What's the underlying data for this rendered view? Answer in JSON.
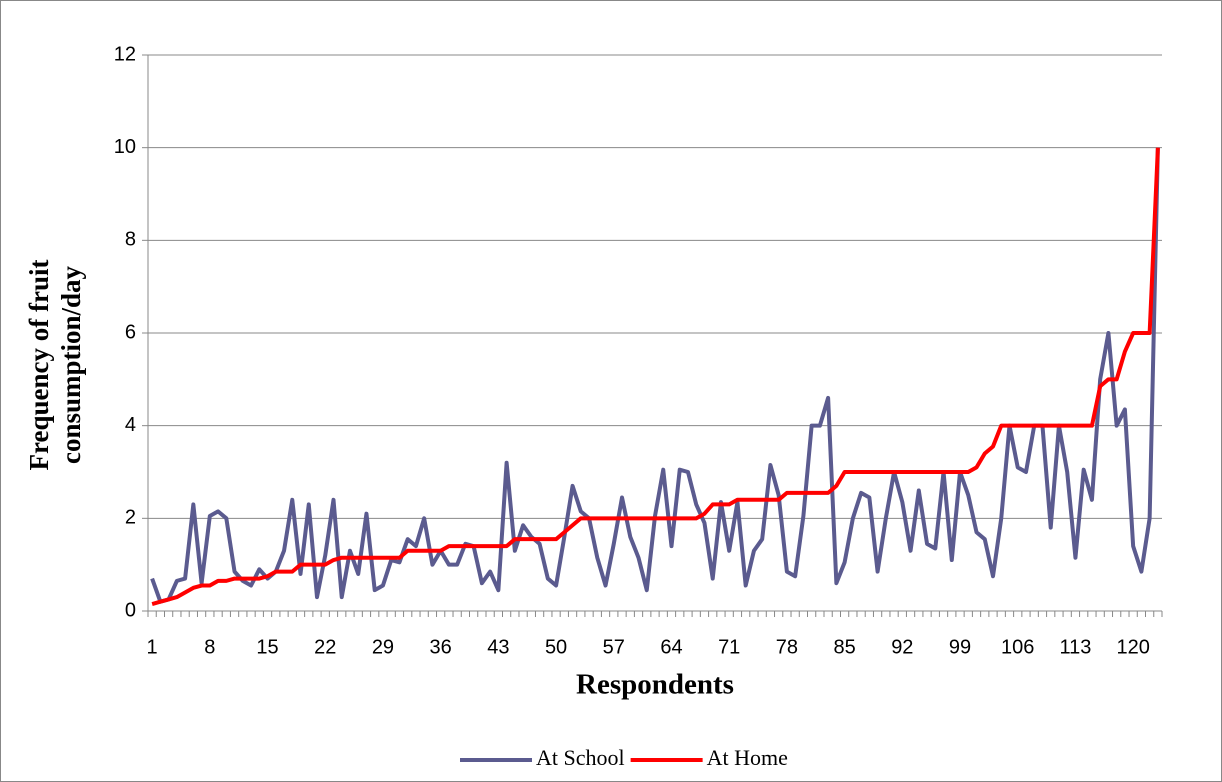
{
  "chart_data": {
    "type": "line",
    "y_label_lines": [
      "Frequency of fruit",
      "consumption/day"
    ],
    "x_label": "Respondents",
    "categories": [
      "1",
      null,
      null,
      null,
      null,
      null,
      null,
      "8",
      null,
      null,
      null,
      null,
      null,
      null,
      "15",
      null,
      null,
      null,
      null,
      null,
      null,
      "22",
      null,
      null,
      null,
      null,
      null,
      null,
      "29",
      null,
      null,
      null,
      null,
      null,
      null,
      "36",
      null,
      null,
      null,
      null,
      null,
      null,
      "43",
      null,
      null,
      null,
      null,
      null,
      null,
      "50",
      null,
      null,
      null,
      null,
      null,
      null,
      "57",
      null,
      null,
      null,
      null,
      null,
      null,
      "64",
      null,
      null,
      null,
      null,
      null,
      null,
      "71",
      null,
      null,
      null,
      null,
      null,
      null,
      "78",
      null,
      null,
      null,
      null,
      null,
      null,
      "85",
      null,
      null,
      null,
      null,
      null,
      null,
      "92",
      null,
      null,
      null,
      null,
      null,
      null,
      "99",
      null,
      null,
      null,
      null,
      null,
      null,
      "106",
      null,
      null,
      null,
      null,
      null,
      null,
      "113",
      null,
      null,
      null,
      null,
      null,
      null,
      "120",
      null,
      null,
      null
    ],
    "series": [
      {
        "name": "At School",
        "color": "#5b5b8f",
        "values": [
          0.7,
          0.2,
          0.25,
          0.65,
          0.7,
          2.3,
          0.6,
          2.05,
          2.15,
          2.0,
          0.85,
          0.65,
          0.55,
          0.9,
          0.7,
          0.85,
          1.3,
          2.4,
          0.8,
          2.3,
          0.3,
          1.2,
          2.4,
          0.3,
          1.3,
          0.8,
          2.1,
          0.45,
          0.55,
          1.1,
          1.05,
          1.55,
          1.4,
          2.0,
          1.0,
          1.3,
          1.0,
          1.0,
          1.45,
          1.4,
          0.6,
          0.85,
          0.45,
          3.2,
          1.3,
          1.85,
          1.6,
          1.45,
          0.7,
          0.55,
          1.6,
          2.7,
          2.15,
          2.0,
          1.15,
          0.55,
          1.45,
          2.45,
          1.6,
          1.15,
          0.45,
          2.05,
          3.05,
          1.4,
          3.05,
          3.0,
          2.3,
          1.9,
          0.7,
          2.35,
          1.3,
          2.35,
          0.55,
          1.3,
          1.55,
          3.15,
          2.5,
          0.85,
          0.75,
          2.05,
          4.0,
          4.0,
          4.6,
          0.6,
          1.05,
          2.0,
          2.55,
          2.45,
          0.85,
          2.0,
          3.0,
          2.35,
          1.3,
          2.6,
          1.45,
          1.35,
          3.0,
          1.1,
          3.0,
          2.5,
          1.7,
          1.55,
          0.75,
          2.0,
          4.0,
          3.1,
          3.0,
          4.0,
          4.0,
          1.8,
          4.0,
          3.0,
          1.15,
          3.05,
          2.4,
          5.0,
          6.0,
          4.0,
          4.35,
          1.4,
          0.85,
          2.0,
          10
        ]
      },
      {
        "name": "At Home",
        "color": "#ff0000",
        "values": [
          0.15,
          0.2,
          0.25,
          0.3,
          0.4,
          0.5,
          0.55,
          0.55,
          0.65,
          0.65,
          0.7,
          0.7,
          0.7,
          0.7,
          0.75,
          0.85,
          0.85,
          0.85,
          1,
          1,
          1,
          1,
          1.1,
          1.15,
          1.15,
          1.15,
          1.15,
          1.15,
          1.15,
          1.15,
          1.15,
          1.3,
          1.3,
          1.3,
          1.3,
          1.3,
          1.4,
          1.4,
          1.4,
          1.4,
          1.4,
          1.4,
          1.4,
          1.4,
          1.55,
          1.55,
          1.55,
          1.55,
          1.55,
          1.55,
          1.7,
          1.85,
          2,
          2,
          2,
          2,
          2,
          2,
          2,
          2,
          2,
          2,
          2,
          2,
          2,
          2,
          2,
          2.1,
          2.3,
          2.3,
          2.3,
          2.4,
          2.4,
          2.4,
          2.4,
          2.4,
          2.4,
          2.55,
          2.55,
          2.55,
          2.55,
          2.55,
          2.55,
          2.7,
          3,
          3,
          3,
          3,
          3,
          3,
          3,
          3,
          3,
          3,
          3,
          3,
          3,
          3,
          3,
          3,
          3.1,
          3.4,
          3.55,
          4,
          4,
          4,
          4,
          4,
          4,
          4,
          4,
          4,
          4,
          4,
          4,
          4.85,
          5,
          5,
          5.6,
          6,
          6,
          6,
          10
        ]
      }
    ],
    "ylim": [
      0,
      12
    ],
    "yticks": [
      0,
      2,
      4,
      6,
      8,
      10,
      12
    ],
    "grid": true,
    "legend": "bottom"
  }
}
